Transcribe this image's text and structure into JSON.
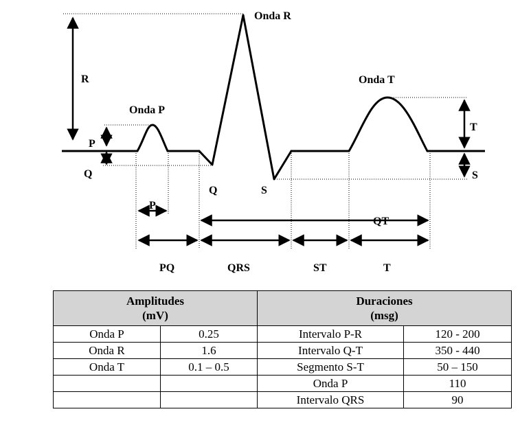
{
  "diagram": {
    "wave_labels": {
      "onda_p": "Onda P",
      "onda_r": "Onda R",
      "onda_t": "Onda T"
    },
    "amplitude_labels": {
      "r": "R",
      "p": "P",
      "q_left": "Q",
      "t": "T",
      "s_right": "S"
    },
    "point_labels": {
      "q": "Q",
      "s": "S"
    },
    "interval_labels": {
      "p": "P",
      "qt": "QT",
      "pq": "PQ",
      "qrs": "QRS",
      "st": "ST",
      "t": "T"
    }
  },
  "table": {
    "left_header": [
      "Amplitudes",
      "(mV)"
    ],
    "right_header": [
      "Duraciones",
      "(msg)"
    ],
    "rows": [
      [
        "Onda P",
        "0.25",
        "Intervalo P-R",
        "120 - 200"
      ],
      [
        "Onda R",
        "1.6",
        "Intervalo Q-T",
        "350 - 440"
      ],
      [
        "Onda T",
        "0.1 – 0.5",
        "Segmento S-T",
        "50 – 150"
      ],
      [
        "",
        "",
        "Onda P",
        "110"
      ],
      [
        "",
        "",
        "Intervalo QRS",
        "90"
      ]
    ]
  }
}
